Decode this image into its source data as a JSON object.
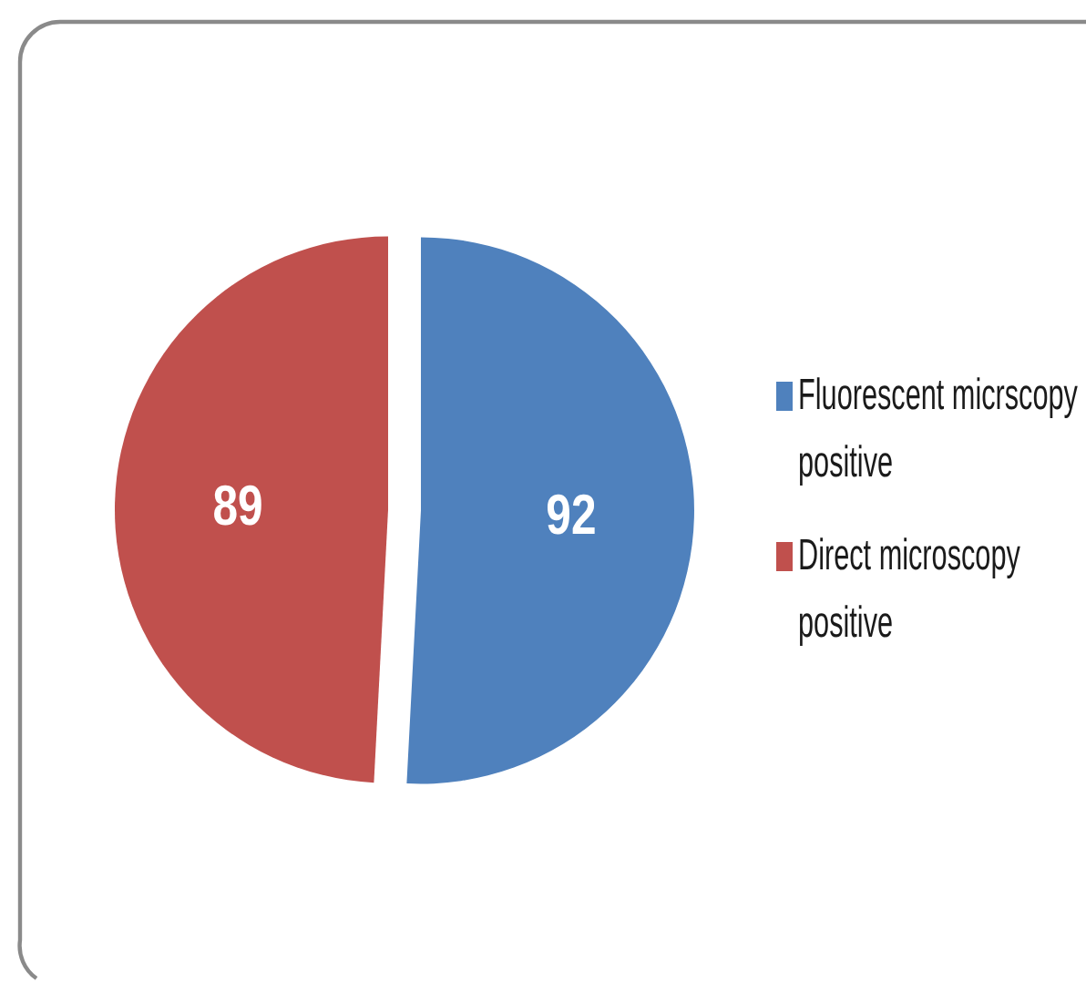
{
  "chart_data": {
    "type": "pie",
    "categories": [
      "Fluorescent micrscopy positive",
      "Direct microscopy positive"
    ],
    "values": [
      92,
      89
    ],
    "colors": [
      "#4f81bd",
      "#c0504d"
    ],
    "data_labels": true,
    "legend": "right"
  }
}
